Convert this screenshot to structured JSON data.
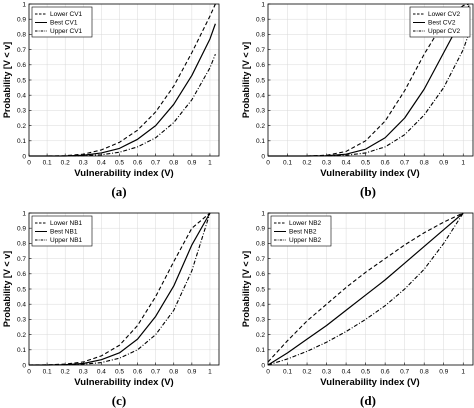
{
  "chart_data": [
    {
      "type": "line",
      "panel_label": "(a)",
      "xlabel": "Vulnerability index (V)",
      "ylabel": "Probability [V < v]",
      "xlim": [
        0,
        1.05
      ],
      "ylim": [
        0,
        1
      ],
      "xticks": [
        "0",
        "0.1",
        "0.2",
        "0.3",
        "0.4",
        "0.5",
        "0.6",
        "0.7",
        "0.8",
        "0.9",
        "1"
      ],
      "yticks": [
        "0",
        "0.1",
        "0.2",
        "0.3",
        "0.4",
        "0.5",
        "0.6",
        "0.7",
        "0.8",
        "0.9",
        "1"
      ],
      "grid": true,
      "legend_position": "top-left",
      "x": [
        0,
        0.1,
        0.2,
        0.3,
        0.4,
        0.5,
        0.6,
        0.7,
        0.8,
        0.9,
        1.0,
        1.03
      ],
      "series": [
        {
          "name": "Lower CV1",
          "style": "dashed",
          "values": [
            0,
            0,
            0.002,
            0.012,
            0.04,
            0.09,
            0.17,
            0.29,
            0.46,
            0.68,
            0.92,
            1.0
          ]
        },
        {
          "name": "Best CV1",
          "style": "solid",
          "values": [
            0,
            0,
            0,
            0.005,
            0.02,
            0.05,
            0.11,
            0.2,
            0.34,
            0.53,
            0.77,
            0.87
          ]
        },
        {
          "name": "Upper CV1",
          "style": "dashdot",
          "values": [
            0,
            0,
            0,
            0.002,
            0.008,
            0.025,
            0.06,
            0.12,
            0.22,
            0.37,
            0.58,
            0.67
          ]
        }
      ]
    },
    {
      "type": "line",
      "panel_label": "(b)",
      "xlabel": "Vulnerability index (V)",
      "ylabel": "Probability [V < v]",
      "xlim": [
        0,
        1.05
      ],
      "ylim": [
        0,
        1
      ],
      "xticks": [
        "0",
        "0.1",
        "0.2",
        "0.3",
        "0.4",
        "0.5",
        "0.6",
        "0.7",
        "0.8",
        "0.9",
        "1"
      ],
      "yticks": [
        "0",
        "0.1",
        "0.2",
        "0.3",
        "0.4",
        "0.5",
        "0.6",
        "0.7",
        "0.8",
        "0.9",
        "1"
      ],
      "grid": true,
      "legend_position": "top-right",
      "x": [
        0,
        0.1,
        0.2,
        0.3,
        0.4,
        0.5,
        0.6,
        0.7,
        0.8,
        0.9,
        1.0,
        1.03
      ],
      "series": [
        {
          "name": "Lower CV2",
          "style": "dashed",
          "values": [
            0,
            0,
            0,
            0.005,
            0.03,
            0.1,
            0.23,
            0.43,
            0.67,
            0.88,
            0.99,
            1.0
          ]
        },
        {
          "name": "Best CV2",
          "style": "solid",
          "values": [
            0,
            0,
            0,
            0.002,
            0.012,
            0.045,
            0.12,
            0.25,
            0.44,
            0.68,
            0.92,
            0.99
          ]
        },
        {
          "name": "Upper CV2",
          "style": "dashdot",
          "values": [
            0,
            0,
            0,
            0.001,
            0.005,
            0.02,
            0.06,
            0.14,
            0.27,
            0.45,
            0.7,
            0.81
          ]
        }
      ]
    },
    {
      "type": "line",
      "panel_label": "(c)",
      "xlabel": "Vulnerability index (V)",
      "ylabel": "Probability [V < v]",
      "xlim": [
        0,
        1.05
      ],
      "ylim": [
        0,
        1
      ],
      "xticks": [
        "0",
        "0.1",
        "0.2",
        "0.3",
        "0.4",
        "0.5",
        "0.6",
        "0.7",
        "0.8",
        "0.9",
        "1"
      ],
      "yticks": [
        "0",
        "0.1",
        "0.2",
        "0.3",
        "0.4",
        "0.5",
        "0.6",
        "0.7",
        "0.8",
        "0.9",
        "1"
      ],
      "grid": true,
      "legend_position": "top-left",
      "x": [
        0,
        0.1,
        0.2,
        0.3,
        0.4,
        0.5,
        0.6,
        0.7,
        0.8,
        0.9,
        1.0
      ],
      "series": [
        {
          "name": "Lower NB1",
          "style": "dashed",
          "values": [
            0,
            0.001,
            0.006,
            0.02,
            0.06,
            0.13,
            0.26,
            0.45,
            0.68,
            0.9,
            1.0
          ]
        },
        {
          "name": "Best NB1",
          "style": "solid",
          "values": [
            0,
            0,
            0.002,
            0.01,
            0.035,
            0.08,
            0.17,
            0.32,
            0.52,
            0.79,
            1.0
          ]
        },
        {
          "name": "Upper NB1",
          "style": "dashdot",
          "values": [
            0,
            0,
            0.001,
            0.005,
            0.016,
            0.045,
            0.1,
            0.2,
            0.36,
            0.62,
            1.0
          ]
        }
      ]
    },
    {
      "type": "line",
      "panel_label": "(d)",
      "xlabel": "Vulnerability index (V)",
      "ylabel": "Probability [V < v]",
      "xlim": [
        0,
        1.05
      ],
      "ylim": [
        0,
        1
      ],
      "xticks": [
        "0",
        "0.1",
        "0.2",
        "0.3",
        "0.4",
        "0.5",
        "0.6",
        "0.7",
        "0.8",
        "0.9",
        "1"
      ],
      "yticks": [
        "0",
        "0.1",
        "0.2",
        "0.3",
        "0.4",
        "0.5",
        "0.6",
        "0.7",
        "0.8",
        "0.9",
        "1"
      ],
      "grid": true,
      "legend_position": "top-left",
      "x": [
        0,
        0.1,
        0.2,
        0.3,
        0.4,
        0.5,
        0.6,
        0.7,
        0.8,
        0.9,
        1.0
      ],
      "series": [
        {
          "name": "Lower NB2",
          "style": "dashed",
          "values": [
            0.02,
            0.16,
            0.29,
            0.4,
            0.51,
            0.61,
            0.7,
            0.79,
            0.87,
            0.94,
            1.0
          ]
        },
        {
          "name": "Best NB2",
          "style": "solid",
          "values": [
            0,
            0.08,
            0.17,
            0.26,
            0.36,
            0.46,
            0.56,
            0.67,
            0.78,
            0.89,
            1.0
          ]
        },
        {
          "name": "Upper NB2",
          "style": "dashdot",
          "values": [
            0,
            0.04,
            0.09,
            0.15,
            0.22,
            0.3,
            0.39,
            0.5,
            0.63,
            0.8,
            1.0
          ]
        }
      ]
    }
  ]
}
